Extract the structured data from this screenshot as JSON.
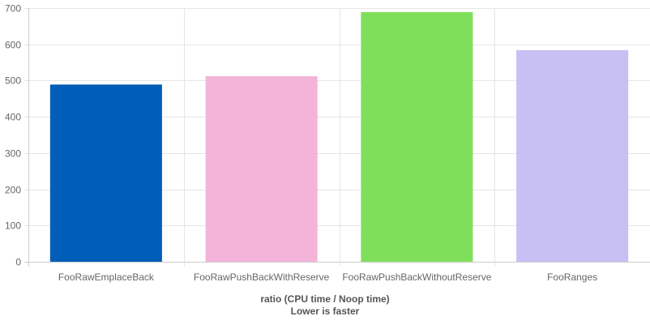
{
  "chart_data": {
    "type": "bar",
    "categories": [
      "FooRawEmplaceBack",
      "FooRawPushBackWithReserve",
      "FooRawPushBackWithoutReserve",
      "FooRanges"
    ],
    "values": [
      489,
      512,
      689,
      584
    ],
    "colors": [
      "#005eb8",
      "#f4b4da",
      "#80df5a",
      "#c8c0f4"
    ],
    "xlabel": [
      "ratio (CPU time / Noop time)",
      "Lower is faster"
    ],
    "ylabel": "",
    "ylim": [
      0,
      700
    ],
    "yticks": [
      0,
      100,
      200,
      300,
      400,
      500,
      600,
      700
    ],
    "grid": true,
    "legend": "none"
  }
}
